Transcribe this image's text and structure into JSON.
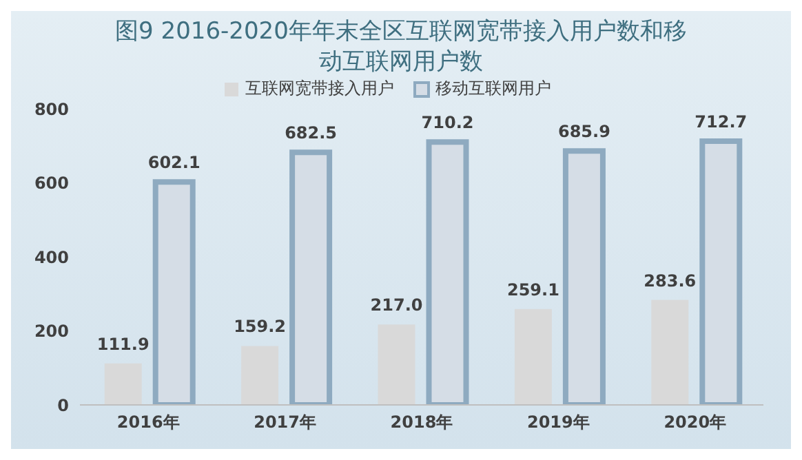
{
  "chart_data": {
    "type": "bar",
    "title": "图9  2016-2020年年末全区互联网宽带接入用户数和移动互联网用户数",
    "categories": [
      "2016年",
      "2017年",
      "2018年",
      "2019年",
      "2020年"
    ],
    "series": [
      {
        "name": "互联网宽带接入用户",
        "color": "#d9d9d9",
        "values": [
          111.9,
          159.2,
          217.0,
          259.1,
          283.6
        ]
      },
      {
        "name": "移动互联网用户",
        "color": "#d5dde6",
        "values": [
          602.1,
          682.5,
          710.2,
          685.9,
          712.7
        ]
      }
    ],
    "value_labels": [
      [
        "111.9",
        "159.2",
        "217.0",
        "259.1",
        "283.6"
      ],
      [
        "602.1",
        "682.5",
        "710.2",
        "685.9",
        "712.7"
      ]
    ],
    "ylim": [
      0,
      800
    ],
    "yticks": [
      0,
      200,
      400,
      600,
      800
    ],
    "grid": false,
    "legend": "top"
  }
}
